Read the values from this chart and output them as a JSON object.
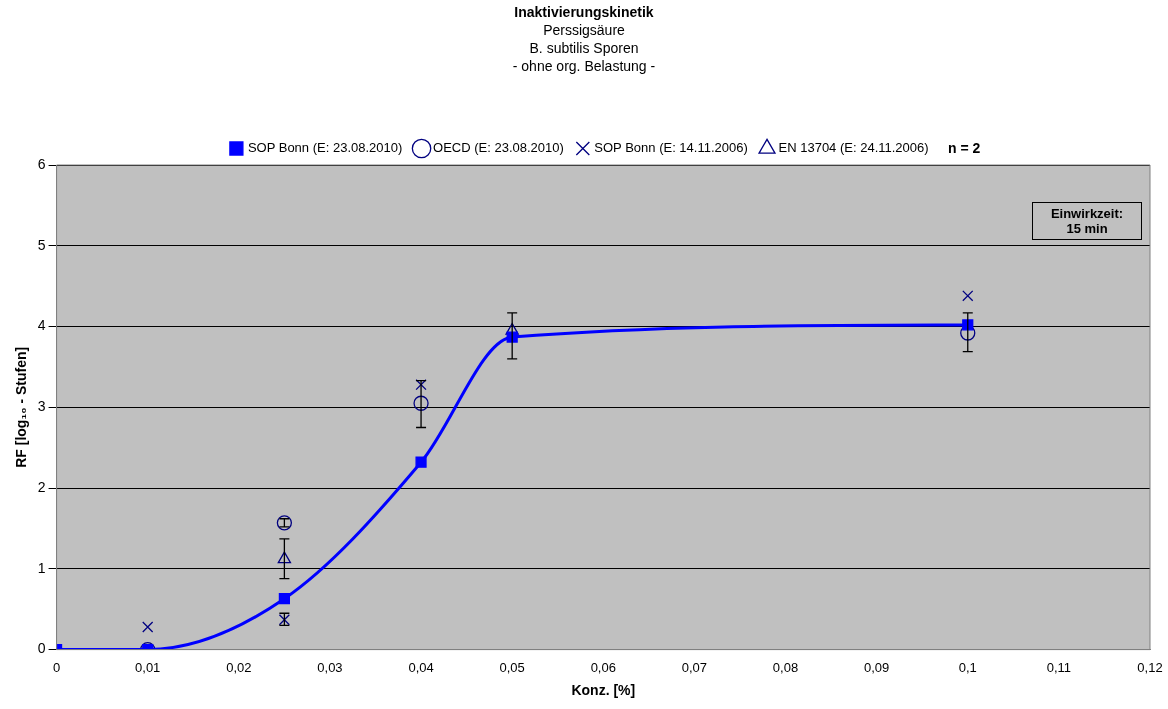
{
  "chart_data": {
    "type": "line",
    "title": "Inaktivierungskinetik",
    "subtitle": "Perssigsäure\nB. subtilis Sporen\n- ohne org. Belastung -",
    "xlabel": "Konz. [%]",
    "ylabel": "RF [log₁₀ - Stufen]",
    "x": [
      0,
      0.01,
      0.025,
      0.04,
      0.05,
      0.1
    ],
    "series": [
      {
        "name": "SOP Bonn (E: 23.08.2010)",
        "type": "line",
        "color": "#0000ff",
        "marker": "square",
        "line_style": "solid",
        "values": [
          0,
          0,
          0.63,
          2.32,
          3.87,
          4.02
        ],
        "errors": [
          null,
          null,
          null,
          null,
          [
            3.6,
            4.17
          ],
          null
        ]
      },
      {
        "name": "OECD (E: 23.08.2010)",
        "type": "scatter",
        "color": "#000080",
        "marker": "circle",
        "values": [
          null,
          0,
          1.57,
          3.05,
          null,
          3.92
        ],
        "errors": [
          null,
          null,
          0.05,
          [
            2.75,
            3.33
          ],
          null,
          [
            3.69,
            4.17
          ]
        ]
      },
      {
        "name": "SOP Bonn (E: 14.11.2006)",
        "type": "scatter",
        "color": "#000080",
        "marker": "cross",
        "values": [
          null,
          0.28,
          0.37,
          3.28,
          null,
          4.38
        ],
        "errors": [
          null,
          null,
          [
            0.3,
            0.45
          ],
          null,
          null,
          null
        ]
      },
      {
        "name": "EN 13704 (E: 24.11.2006)",
        "type": "scatter",
        "color": "#000080",
        "marker": "triangle",
        "values": [
          null,
          null,
          1.12,
          null,
          3.95,
          null
        ],
        "errors": [
          null,
          null,
          [
            0.88,
            1.37
          ],
          null,
          null,
          null
        ]
      }
    ],
    "xlim": [
      0,
      0.12
    ],
    "xticks": [
      0,
      {
        "value": 0.01,
        "label": "0,01"
      },
      {
        "value": 0.02,
        "label": "0,02"
      },
      {
        "value": 0.03,
        "label": "0,03"
      },
      {
        "value": 0.04,
        "label": "0,04"
      },
      {
        "value": 0.05,
        "label": "0,05"
      },
      {
        "value": 0.06,
        "label": "0,06"
      },
      {
        "value": 0.07,
        "label": "0,07"
      },
      {
        "value": 0.08,
        "label": "0,08"
      },
      {
        "value": 0.09,
        "label": "0,09"
      },
      {
        "value": 0.1,
        "label": "0,1"
      },
      {
        "value": 0.11,
        "label": "0,11"
      },
      {
        "value": 0.12,
        "label": "0,12"
      }
    ],
    "ylim": [
      0,
      6
    ],
    "yticks": [
      0,
      1,
      2,
      3,
      4,
      5,
      6
    ],
    "grid": "y",
    "legend": "top",
    "annotations": [
      "n = 2",
      "Einwirkzeit:\n15 min"
    ]
  }
}
